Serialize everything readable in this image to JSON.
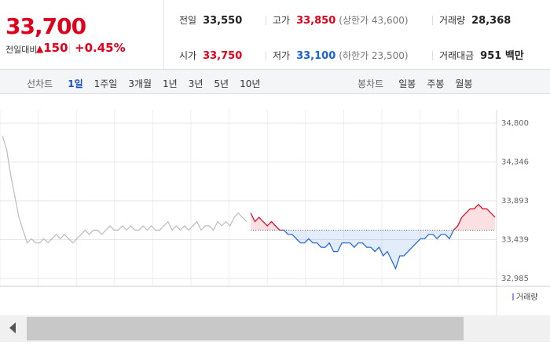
{
  "header": {
    "price": "33,700",
    "change_label": "전일대비",
    "change": "150",
    "change_pct": "+0.45%",
    "stats": [
      {
        "label": "전일",
        "value": "33,550"
      },
      {
        "label": "고가",
        "value": "33,850",
        "extra": "(상한가 43,600)",
        "color": "#e0001b"
      },
      {
        "label": "거래량",
        "value": "28,368"
      },
      {
        "label": "시가",
        "value": "33,750",
        "color": "#e0001b"
      },
      {
        "label": "저가",
        "value": "33,100",
        "extra": "(하한가 23,500)",
        "color": "#1b63d4"
      },
      {
        "label": "거래대금",
        "value": "951 백만"
      }
    ]
  },
  "tabs": {
    "line": {
      "label": "선차트",
      "items": [
        "1일",
        "1주일",
        "3개월",
        "1년",
        "3년",
        "5년",
        "10년"
      ],
      "selected": 0
    },
    "candle": {
      "label": "봉차트",
      "items": [
        "일봉",
        "주봉",
        "월봉"
      ]
    }
  },
  "chart_data": {
    "type": "line",
    "ylim": [
      32985,
      34800
    ],
    "yticks": [
      {
        "value": 34800,
        "label": "34,800"
      },
      {
        "value": 34346,
        "label": "34,346"
      },
      {
        "value": 33893,
        "label": "33,893"
      },
      {
        "value": 33439,
        "label": "33,439"
      },
      {
        "value": 32985,
        "label": "32,985"
      }
    ],
    "grid": true,
    "baseline": 33550,
    "volume_label": "거래량",
    "series": [
      {
        "color": "#bbbbbb",
        "values": [
          34650,
          34500,
          34200,
          33950,
          33700,
          33550,
          33400,
          33450,
          33400,
          33400,
          33450,
          33400,
          33450,
          33500,
          33450,
          33500,
          33450,
          33400,
          33450,
          33500,
          33550,
          33500,
          33550,
          33550,
          33500,
          33550,
          33600,
          33550,
          33550,
          33600,
          33550,
          33600,
          33550,
          33550,
          33600,
          33550,
          33600,
          33550,
          33550,
          33600,
          33650,
          33550,
          33600,
          33550,
          33600,
          33550,
          33600,
          33650,
          33550,
          33600,
          33600,
          33550,
          33650,
          33600,
          33650,
          33600,
          33700,
          33750,
          33700,
          33650,
          null,
          null,
          null,
          null,
          null,
          null,
          null,
          null,
          null,
          null,
          null,
          null,
          null,
          null,
          null,
          null,
          null,
          null,
          null,
          null,
          null,
          null,
          null,
          null,
          null,
          null,
          null,
          null,
          null,
          null,
          null,
          null,
          null,
          null,
          null,
          null,
          null,
          null,
          null,
          null,
          null,
          null,
          null,
          null,
          null,
          null,
          null,
          null,
          null,
          null,
          null,
          null,
          null,
          null,
          null,
          null,
          null,
          null,
          null,
          null
        ]
      },
      {
        "color": "#e0001b",
        "color_down": "#1b63d4",
        "values": [
          null,
          null,
          null,
          null,
          null,
          null,
          null,
          null,
          null,
          null,
          null,
          null,
          null,
          null,
          null,
          null,
          null,
          null,
          null,
          null,
          null,
          null,
          null,
          null,
          null,
          null,
          null,
          null,
          null,
          null,
          null,
          null,
          null,
          null,
          null,
          null,
          null,
          null,
          null,
          null,
          null,
          null,
          null,
          null,
          null,
          null,
          null,
          null,
          null,
          null,
          null,
          null,
          null,
          null,
          null,
          null,
          null,
          null,
          null,
          null,
          33750,
          33650,
          33700,
          33650,
          33600,
          33650,
          33600,
          33550,
          33550,
          33500,
          33500,
          33450,
          33400,
          33400,
          33450,
          33400,
          33400,
          33350,
          33350,
          33400,
          33300,
          33300,
          33400,
          33400,
          33400,
          33350,
          33400,
          33400,
          33350,
          33350,
          33300,
          33350,
          33250,
          33300,
          33200,
          33100,
          33250,
          33250,
          33300,
          33350,
          33400,
          33450,
          33450,
          33500,
          33500,
          33450,
          33500,
          33500,
          33450,
          33550,
          33600,
          33700,
          33750,
          33800,
          33800,
          33850,
          33800,
          33800,
          33750,
          33700
        ]
      }
    ]
  }
}
